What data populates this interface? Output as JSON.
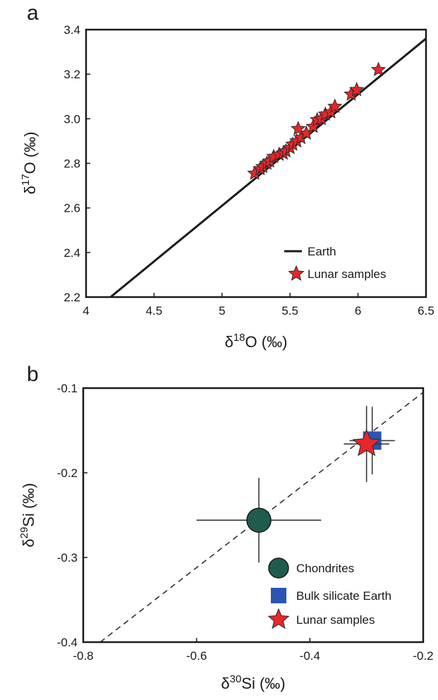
{
  "chart_data": [
    {
      "panel": "a",
      "type": "scatter",
      "xlabel": {
        "base": "δ",
        "sup": "18",
        "rest": "O (‰)"
      },
      "ylabel": {
        "base": "δ",
        "sup": "17",
        "rest": "O (‰)"
      },
      "xlim": [
        4,
        6.5
      ],
      "ylim": [
        2.2,
        3.4
      ],
      "x_ticks": [
        "4",
        "4.5",
        "5",
        "5.5",
        "6",
        "6.5"
      ],
      "y_ticks": [
        "2.2",
        "2.4",
        "2.6",
        "2.8",
        "3.0",
        "3.2",
        "3.4"
      ],
      "grid": false,
      "legend_position": "bottom-right",
      "series": [
        {
          "name": "Earth",
          "kind": "line",
          "color": "#1a1a1a",
          "points": [
            [
              4.18,
              2.2
            ],
            [
              6.5,
              3.36
            ]
          ]
        },
        {
          "name": "Lunar samples",
          "kind": "star",
          "color": "#e8262b",
          "points": [
            [
              5.24,
              2.755
            ],
            [
              5.28,
              2.775
            ],
            [
              5.3,
              2.785
            ],
            [
              5.33,
              2.8
            ],
            [
              5.35,
              2.81
            ],
            [
              5.38,
              2.83
            ],
            [
              5.42,
              2.84
            ],
            [
              5.45,
              2.845
            ],
            [
              5.47,
              2.855
            ],
            [
              5.5,
              2.87
            ],
            [
              5.52,
              2.885
            ],
            [
              5.55,
              2.9
            ],
            [
              5.58,
              2.915
            ],
            [
              5.62,
              2.935
            ],
            [
              5.56,
              2.955
            ],
            [
              5.67,
              2.965
            ],
            [
              5.7,
              2.995
            ],
            [
              5.73,
              3.0
            ],
            [
              5.76,
              3.02
            ],
            [
              5.8,
              3.03
            ],
            [
              5.83,
              3.055
            ],
            [
              5.95,
              3.11
            ],
            [
              5.99,
              3.13
            ],
            [
              6.15,
              3.22
            ]
          ]
        }
      ]
    },
    {
      "panel": "b",
      "type": "scatter",
      "xlabel": {
        "base": "δ",
        "sup": "30",
        "rest": "Si (‰)"
      },
      "ylabel": {
        "base": "δ",
        "sup": "29",
        "rest": "Si (‰)"
      },
      "xlim": [
        -0.8,
        -0.2
      ],
      "ylim": [
        -0.4,
        -0.1
      ],
      "x_ticks": [
        "-0.8",
        "-0.6",
        "-0.4",
        "-0.2"
      ],
      "y_ticks": [
        "-0.4",
        "-0.3",
        "-0.2",
        "-0.1"
      ],
      "grid": false,
      "legend_position": "bottom-right",
      "reference_line": {
        "style": "dashed",
        "color": "#333333",
        "points": [
          [
            -0.77,
            -0.4
          ],
          [
            -0.2,
            -0.105
          ]
        ]
      },
      "series": [
        {
          "name": "Chondrites",
          "kind": "circle",
          "color": "#1f5c4e",
          "x": -0.49,
          "y": -0.256,
          "xerr": 0.11,
          "yerr": 0.05
        },
        {
          "name": "Bulk silicate Earth",
          "kind": "square",
          "color": "#2a55b3",
          "x": -0.29,
          "y": -0.162,
          "xerr": 0.04,
          "yerr": 0.04
        },
        {
          "name": "Lunar samples",
          "kind": "star",
          "color": "#e8262b",
          "x": -0.3,
          "y": -0.166,
          "xerr": 0.04,
          "yerr": 0.045
        }
      ]
    }
  ]
}
